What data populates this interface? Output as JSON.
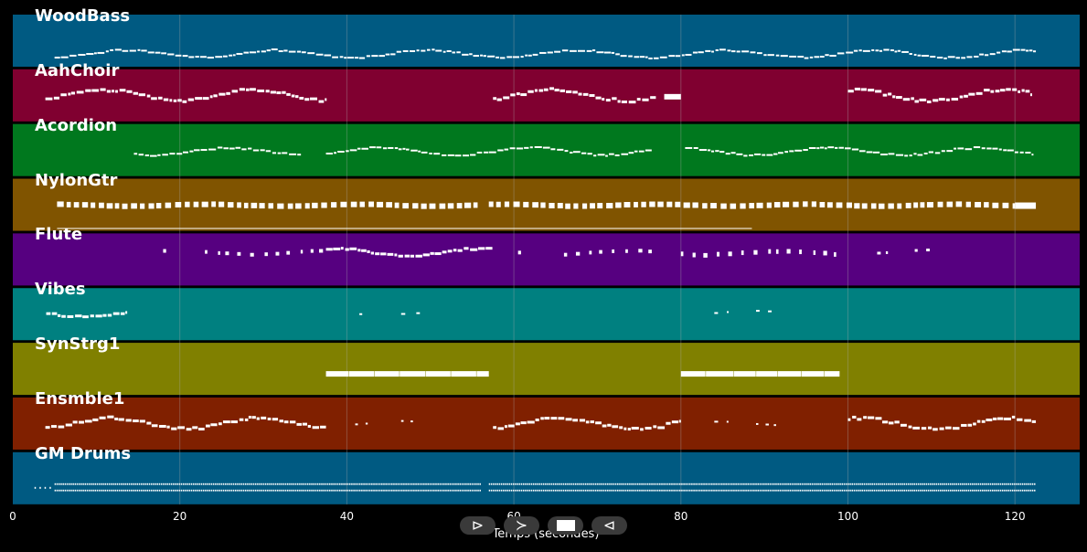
{
  "app": {
    "xlabel": "Temps (secondes)",
    "x_ticks": [
      "0",
      "20",
      "40",
      "60",
      "80",
      "100",
      "120"
    ],
    "tracks": [
      {
        "name": "WoodBass",
        "color": "#005a82"
      },
      {
        "name": "AahChoir",
        "color": "#800030"
      },
      {
        "name": "Acordion",
        "color": "#00781e"
      },
      {
        "name": "NylonGtr",
        "color": "#805400"
      },
      {
        "name": "Flute",
        "color": "#560080"
      },
      {
        "name": "Vibes",
        "color": "#008080"
      },
      {
        "name": "SynStrg1",
        "color": "#808000"
      },
      {
        "name": "Ensmble1",
        "color": "#802000"
      },
      {
        "name": "GM Drums",
        "color": "#005a82"
      }
    ],
    "controls": [
      {
        "name": "play-button",
        "glyph": "⊳"
      },
      {
        "name": "forward-button",
        "glyph": "≻"
      },
      {
        "name": "stop-button",
        "glyph": ""
      },
      {
        "name": "rewind-button",
        "glyph": "⊲"
      }
    ],
    "note_color": "#ffffff",
    "grid_color": "#aaaaaa"
  }
}
